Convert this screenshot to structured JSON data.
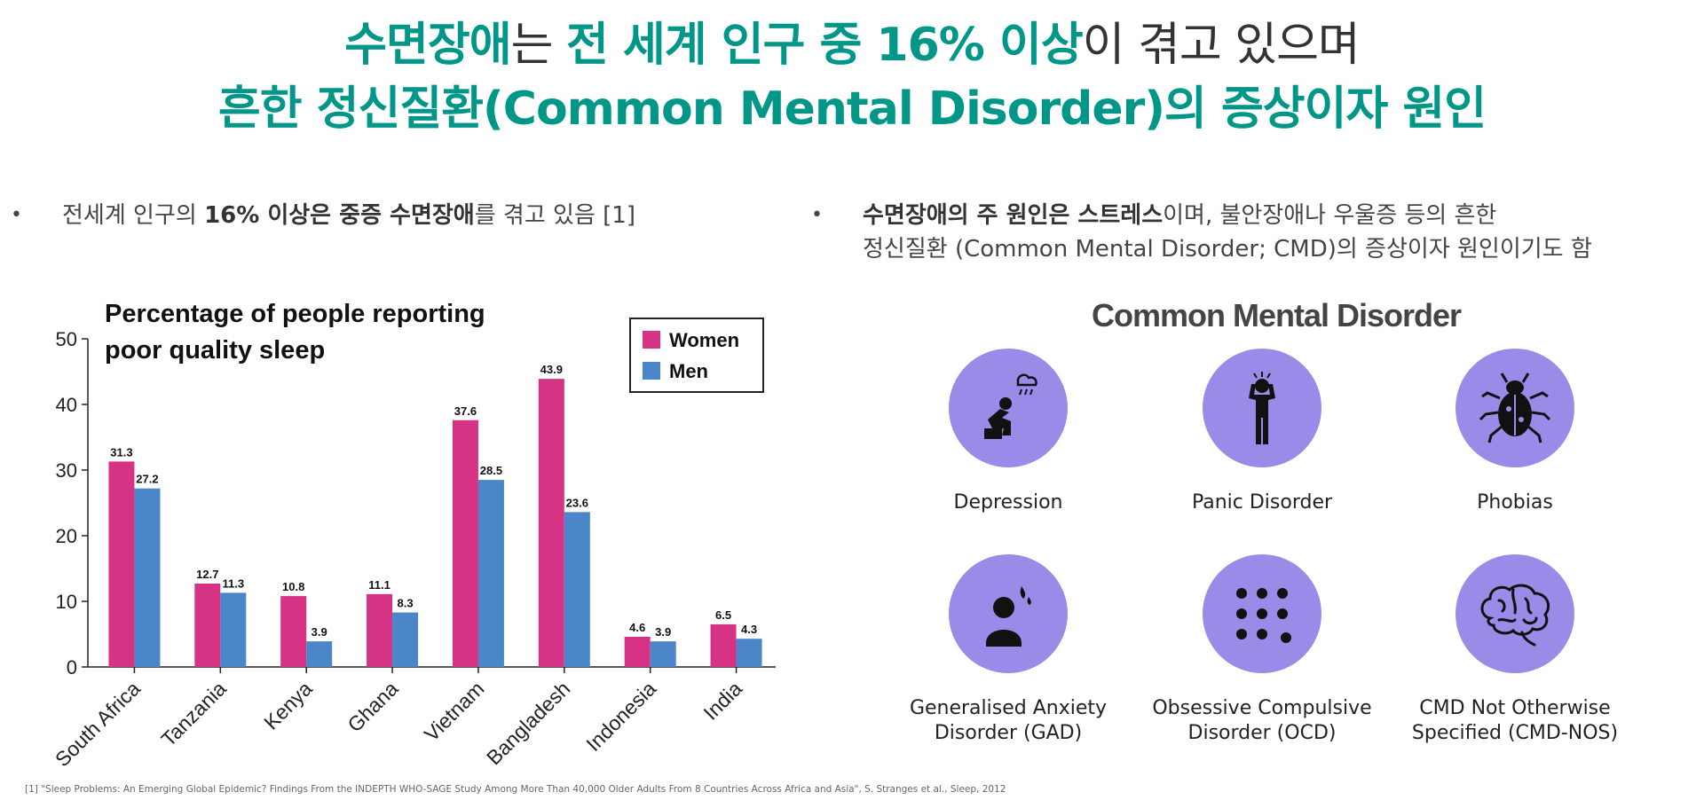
{
  "heading": {
    "line1": {
      "part1": "수면장애",
      "part2": "는 ",
      "part3": "전 세계 인구 중 16% 이상",
      "part4": "이 겪고 있으며"
    },
    "line2": "흔한 정신질환(Common Mental Disorder)의 증상이자 원인"
  },
  "left_bullet": {
    "bullet": "•",
    "pre": "전세계 인구의 ",
    "bold": "16% 이상은 중증 수면장애",
    "post": "를 겪고 있음 [1]"
  },
  "right_bullet": {
    "bullet": "•",
    "bold": "수면장애의 주 원인은 스트레스",
    "post": "이며, 불안장애나 우울증 등의 흔한",
    "line2": "정신질환 (Common Mental Disorder; CMD)의 증상이자 원인이기도 함"
  },
  "chart_data": {
    "type": "bar",
    "title": [
      "Percentage of people reporting",
      "poor quality sleep"
    ],
    "categories": [
      "South Africa",
      "Tanzania",
      "Kenya",
      "Ghana",
      "Vietnam",
      "Bangladesh",
      "Indonesia",
      "India"
    ],
    "series": [
      {
        "name": "Women",
        "values": [
          31.3,
          12.7,
          10.8,
          11.1,
          37.6,
          43.9,
          4.6,
          6.5
        ],
        "color": "#d63384"
      },
      {
        "name": "Men",
        "values": [
          27.2,
          11.3,
          3.9,
          8.3,
          28.5,
          23.6,
          3.9,
          4.3
        ],
        "color": "#4a86c8"
      }
    ],
    "ylim": [
      0,
      50
    ],
    "yticks": [
      0,
      10,
      20,
      30,
      40,
      50
    ],
    "legend": "top-right",
    "grid": false
  },
  "cmd": {
    "title": "Common Mental Disorder",
    "circle_color": "#9b8be8",
    "items": [
      {
        "icon": "depression-icon",
        "line1": "Depression",
        "line2": ""
      },
      {
        "icon": "panic-icon",
        "line1": "Panic Disorder",
        "line2": ""
      },
      {
        "icon": "bug-icon",
        "line1": "Phobias",
        "line2": ""
      },
      {
        "icon": "anxiety-icon",
        "line1": "Generalised Anxiety",
        "line2": "Disorder (GAD)"
      },
      {
        "icon": "dots-grid-icon",
        "line1": "Obsessive Compulsive",
        "line2": "Disorder (OCD)"
      },
      {
        "icon": "brain-icon",
        "line1": "CMD Not Otherwise",
        "line2": "Specified (CMD-NOS)"
      }
    ]
  },
  "footnote": "[1] \"Sleep Problems: An Emerging Global Epidemic? Findings From the INDEPTH WHO-SAGE Study Among More Than 40,000 Older Adults From 8 Countries Across Africa and Asia\", S. Stranges et al., Sleep, 2012"
}
